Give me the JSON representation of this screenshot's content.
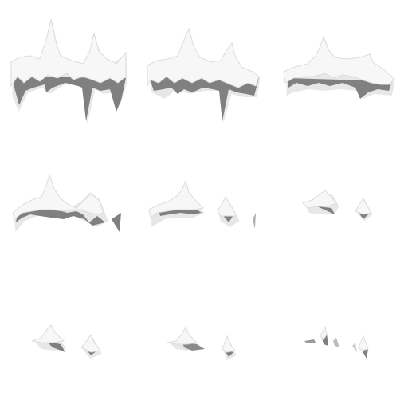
{
  "sprite_sheet": {
    "grid": {
      "rows": 3,
      "cols": 3
    },
    "frames": [
      {
        "index": 1,
        "coverage": 1.0
      },
      {
        "index": 2,
        "coverage": 0.85
      },
      {
        "index": 3,
        "coverage": 0.7
      },
      {
        "index": 4,
        "coverage": 0.6
      },
      {
        "index": 5,
        "coverage": 0.45
      },
      {
        "index": 6,
        "coverage": 0.3
      },
      {
        "index": 7,
        "coverage": 0.25
      },
      {
        "index": 8,
        "coverage": 0.18
      },
      {
        "index": 9,
        "coverage": 0.1
      }
    ],
    "colors": {
      "background": "#ffffff",
      "snow_fill": "#f7f7f7",
      "snow_edge": "#dcdcdc",
      "shadow": "#808080",
      "glow": "#cfcfcf"
    }
  }
}
